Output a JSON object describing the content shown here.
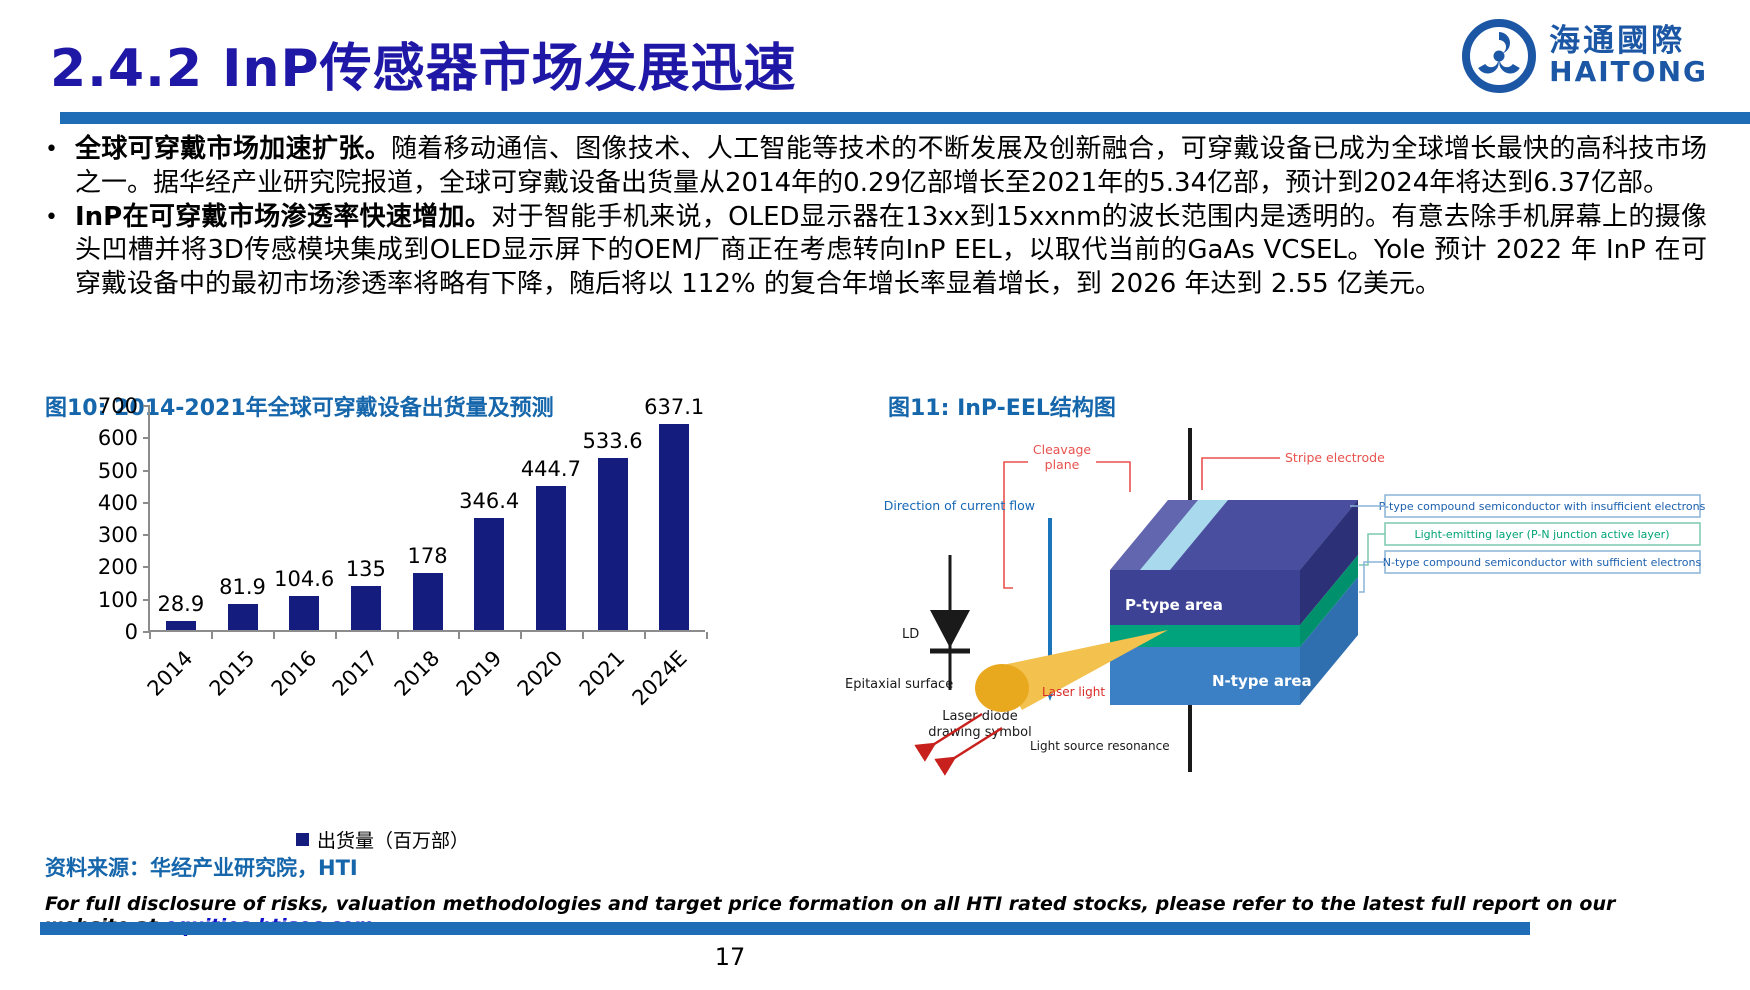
{
  "header": {
    "title": "2.4.2 InP传感器市场发展迅速",
    "logo_cn": "海通國際",
    "logo_en": "HAITONG"
  },
  "bullets": [
    {
      "lead": "全球可穿戴市场加速扩张。",
      "text": "随着移动通信、图像技术、人工智能等技术的不断发展及创新融合，可穿戴设备已成为全球增长最快的高科技市场之一。据华经产业研究院报道，全球可穿戴设备出货量从2014年的0.29亿部增长至2021年的5.34亿部，预计到2024年将达到6.37亿部。"
    },
    {
      "lead": "InP在可穿戴市场渗透率快速增加。",
      "text": "对于智能手机来说，OLED显示器在13xx到15xxnm的波长范围内是透明的。有意去除手机屏幕上的摄像头凹槽并将3D传感模块集成到OLED显示屏下的OEM厂商正在考虑转向InP EEL，以取代当前的GaAs VCSEL。Yole 预计 2022 年 InP 在可穿戴设备中的最初市场渗透率将略有下降，随后将以 112% 的复合年增长率显着增长，到 2026 年达到 2.55 亿美元。"
    }
  ],
  "figure10_title": "图10:  2014-2021年全球可穿戴设备出货量及预测",
  "figure11_title": "图11:  InP-EEL结构图",
  "chart_data": {
    "type": "bar",
    "title": "2014-2021年全球可穿戴设备出货量及预测",
    "categories": [
      "2014",
      "2015",
      "2016",
      "2017",
      "2018",
      "2019",
      "2020",
      "2021",
      "2024E"
    ],
    "values": [
      28.9,
      81.9,
      104.6,
      135,
      178,
      346.4,
      444.7,
      533.6,
      637.1
    ],
    "value_labels": [
      "28.9",
      "81.9",
      "104.6",
      "135",
      "178",
      "346.4",
      "444.7",
      "533.6",
      "637.1"
    ],
    "xlabel": "",
    "ylabel": "",
    "ylim": [
      0,
      700
    ],
    "yticks": [
      0,
      100,
      200,
      300,
      400,
      500,
      600,
      700
    ],
    "grid": false,
    "legend": "出货量（百万部）",
    "legend_position": "bottom",
    "bar_color": "#141c7e"
  },
  "diagram": {
    "cleavage_line1": "Cleavage",
    "cleavage_line2": "plane",
    "stripe_electrode": "Stripe electrode",
    "direction_of_current_flow": "Direction of current flow",
    "ld": "LD",
    "laser_diode_line1": "Laser diode",
    "laser_diode_line2": "drawing symbol",
    "p_type_area": "P-type area",
    "n_type_area": "N-type area",
    "label_p_type": "P-type compound semiconductor with insufficient electrons",
    "label_light_emitting": "Light-emitting layer (P-N junction active layer)",
    "label_n_type": "N-type compound semiconductor with sufficient electrons",
    "epitaxial_surface": "Epitaxial surface",
    "laser_light": "Laser light",
    "light_source_resonance": "Light source resonance"
  },
  "colors": {
    "title_navy": "#1f17a5",
    "rule_blue": "#1e6db6",
    "figure_blue": "#1566ab",
    "bar_navy": "#141c7e",
    "link_blue": "#1212cc",
    "diagram_red": "#e8524e",
    "diagram_blue_arrow": "#1b75bc",
    "diagram_p_face": "#3d4295",
    "diagram_green": "#00a37c",
    "diagram_n_face": "#3b80c4",
    "diagram_stripe": "#a9d9ec",
    "diagram_top_face": "#6266ae",
    "diagram_gold": "#e9a91f"
  },
  "footer": {
    "source": "资料来源：华经产业研究院，HTI",
    "disclosure_prefix": "For full disclosure of risks, valuation methodologies and target price formation on all HTI rated stocks, please refer to the latest full report on our website at ",
    "disclosure_link": "equities.htisec.com",
    "page_number": "17"
  }
}
